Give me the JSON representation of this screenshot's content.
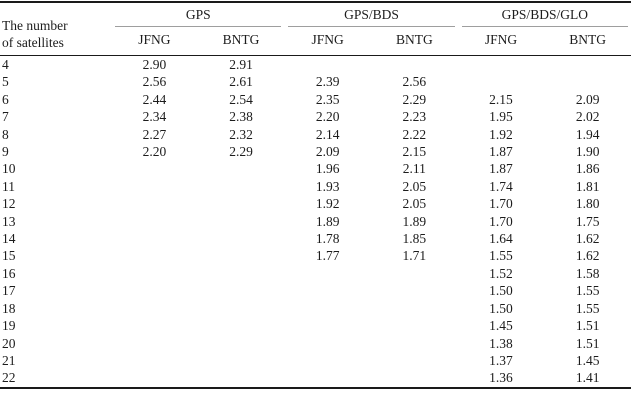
{
  "page": {
    "background": "#ffffff",
    "text_color": "#1c1c1c",
    "heavy_rule_color": "#1a1a1a",
    "group_rule_color": "#9e9e9e"
  },
  "table": {
    "row_header": {
      "line1": "The number",
      "line2": "of satellites"
    },
    "groups": [
      {
        "label": "GPS",
        "subcols": [
          "JFNG",
          "BNTG"
        ]
      },
      {
        "label": "GPS/BDS",
        "subcols": [
          "JFNG",
          "BNTG"
        ]
      },
      {
        "label": "GPS/BDS/GLO",
        "subcols": [
          "JFNG",
          "BNTG"
        ]
      }
    ],
    "rows": [
      {
        "n": "4",
        "values": [
          "2.90",
          "2.91",
          "",
          "",
          "",
          ""
        ]
      },
      {
        "n": "5",
        "values": [
          "2.56",
          "2.61",
          "2.39",
          "2.56",
          "",
          ""
        ]
      },
      {
        "n": "6",
        "values": [
          "2.44",
          "2.54",
          "2.35",
          "2.29",
          "2.15",
          "2.09"
        ]
      },
      {
        "n": "7",
        "values": [
          "2.34",
          "2.38",
          "2.20",
          "2.23",
          "1.95",
          "2.02"
        ]
      },
      {
        "n": "8",
        "values": [
          "2.27",
          "2.32",
          "2.14",
          "2.22",
          "1.92",
          "1.94"
        ]
      },
      {
        "n": "9",
        "values": [
          "2.20",
          "2.29",
          "2.09",
          "2.15",
          "1.87",
          "1.90"
        ]
      },
      {
        "n": "10",
        "values": [
          "",
          "",
          "1.96",
          "2.11",
          "1.87",
          "1.86"
        ]
      },
      {
        "n": "11",
        "values": [
          "",
          "",
          "1.93",
          "2.05",
          "1.74",
          "1.81"
        ]
      },
      {
        "n": "12",
        "values": [
          "",
          "",
          "1.92",
          "2.05",
          "1.70",
          "1.80"
        ]
      },
      {
        "n": "13",
        "values": [
          "",
          "",
          "1.89",
          "1.89",
          "1.70",
          "1.75"
        ]
      },
      {
        "n": "14",
        "values": [
          "",
          "",
          "1.78",
          "1.85",
          "1.64",
          "1.62"
        ]
      },
      {
        "n": "15",
        "values": [
          "",
          "",
          "1.77",
          "1.71",
          "1.55",
          "1.62"
        ]
      },
      {
        "n": "16",
        "values": [
          "",
          "",
          "",
          "",
          "1.52",
          "1.58"
        ]
      },
      {
        "n": "17",
        "values": [
          "",
          "",
          "",
          "",
          "1.50",
          "1.55"
        ]
      },
      {
        "n": "18",
        "values": [
          "",
          "",
          "",
          "",
          "1.50",
          "1.55"
        ]
      },
      {
        "n": "19",
        "values": [
          "",
          "",
          "",
          "",
          "1.45",
          "1.51"
        ]
      },
      {
        "n": "20",
        "values": [
          "",
          "",
          "",
          "",
          "1.38",
          "1.51"
        ]
      },
      {
        "n": "21",
        "values": [
          "",
          "",
          "",
          "",
          "1.37",
          "1.45"
        ]
      },
      {
        "n": "22",
        "values": [
          "",
          "",
          "",
          "",
          "1.36",
          "1.41"
        ]
      }
    ]
  }
}
